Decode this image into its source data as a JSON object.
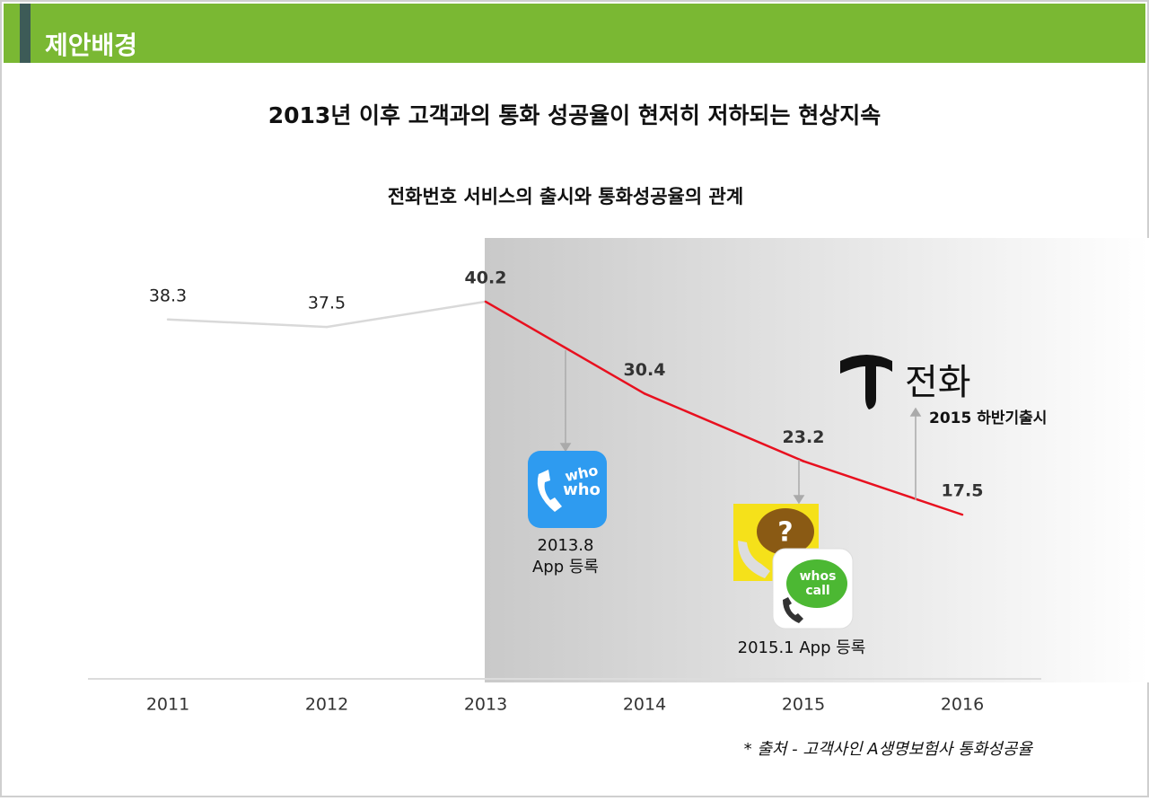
{
  "header": {
    "title": "제안배경"
  },
  "title": "2013년 이후 고객과의 통화 성공율이 현저히 저하되는 현상지속",
  "chart_data": {
    "type": "line",
    "title": "전화번호 서비스의 출시와 통화성공율의 관계",
    "categories": [
      "2011",
      "2012",
      "2013",
      "2014",
      "2015",
      "2016"
    ],
    "values": [
      38.3,
      37.5,
      40.2,
      30.4,
      23.2,
      17.5
    ],
    "segment_colors": [
      "#d9d9d9",
      "#d9d9d9",
      "#e8101f",
      "#e8101f",
      "#e8101f"
    ]
  },
  "annotations": {
    "whowho": {
      "icon_lines": [
        "who",
        "who"
      ],
      "lines": [
        "2013.8",
        "App 등록"
      ]
    },
    "whoscall": {
      "icon_lines": [
        "whos",
        "call"
      ],
      "icon_mark": "?",
      "text": "2015.1 App 등록"
    },
    "tphone": {
      "logo": "전화",
      "text": "2015 하반기출시"
    }
  },
  "source": "* 출처 - 고객사인 A생명보험사 통화성공율"
}
